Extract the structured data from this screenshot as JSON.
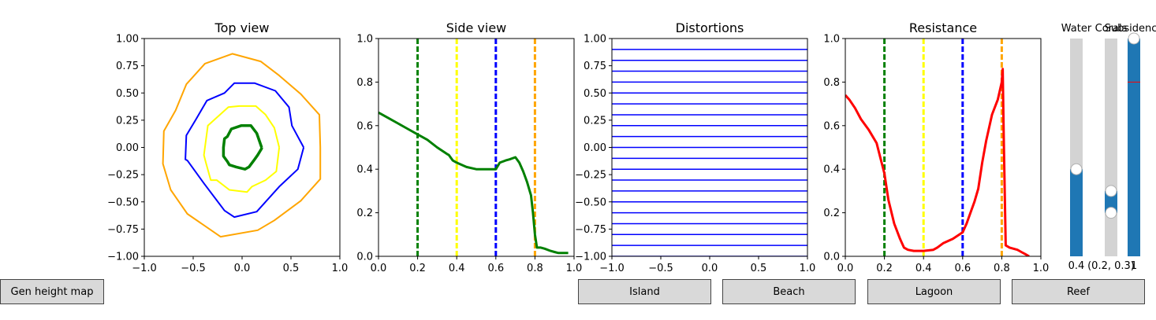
{
  "buttons": {
    "gen_height_map": "Gen height map",
    "island": "Island",
    "beach": "Beach",
    "lagoon": "Lagoon",
    "reef": "Reef"
  },
  "sliders": [
    {
      "title": "Water",
      "value_label": "0.4",
      "value": 0.4,
      "range": [
        0,
        1
      ]
    },
    {
      "title": "Corals",
      "value_label": "(0.2, 0.3)",
      "values": [
        0.2,
        0.3
      ],
      "range": [
        0,
        1
      ]
    },
    {
      "title": "Subsidence",
      "value_label": "1",
      "value": 1.0,
      "range": [
        0,
        1
      ],
      "initial_marker": 0.8
    }
  ],
  "colors": {
    "green": "#008000",
    "yellow": "#ffff00",
    "blue": "#0000ff",
    "orange": "#ffa500",
    "red": "#ff0000",
    "slider_fill": "#1f77b4",
    "slider_track": "#d3d3d3"
  },
  "chart_data": [
    {
      "type": "line",
      "title": "Top view",
      "xlim": [
        -1,
        1
      ],
      "ylim": [
        -1,
        1
      ],
      "xticks": [
        "−1.0",
        "−0.5",
        "0.0",
        "0.5",
        "1.0"
      ],
      "yticks": [
        "−1.00",
        "−0.75",
        "−0.50",
        "−0.25",
        "0.00",
        "0.25",
        "0.50",
        "0.75",
        "1.00"
      ],
      "series": [
        {
          "color": "orange",
          "width": 2,
          "x": [
            0.8,
            0.79,
            0.6,
            0.38,
            0.19,
            -0.1,
            -0.38,
            -0.57,
            -0.68,
            -0.8,
            -0.81,
            -0.73,
            -0.56,
            -0.22,
            0.16,
            0.33,
            0.6,
            0.8,
            0.8
          ],
          "y": [
            0.0,
            0.3,
            0.49,
            0.66,
            0.79,
            0.86,
            0.77,
            0.58,
            0.34,
            0.15,
            -0.15,
            -0.39,
            -0.61,
            -0.82,
            -0.76,
            -0.67,
            -0.49,
            -0.29,
            0.0
          ]
        },
        {
          "color": "blue",
          "width": 2,
          "x": [
            0.63,
            0.51,
            0.48,
            0.34,
            0.13,
            -0.08,
            -0.18,
            -0.36,
            -0.47,
            -0.57,
            -0.58,
            -0.56,
            -0.39,
            -0.18,
            -0.08,
            0.15,
            0.38,
            0.57,
            0.63
          ],
          "y": [
            0.0,
            0.2,
            0.37,
            0.52,
            0.59,
            0.59,
            0.5,
            0.43,
            0.26,
            0.11,
            -0.11,
            -0.12,
            -0.33,
            -0.58,
            -0.64,
            -0.59,
            -0.36,
            -0.2,
            0.0
          ]
        },
        {
          "color": "yellow",
          "width": 2,
          "x": [
            0.38,
            0.33,
            0.24,
            0.14,
            -0.03,
            -0.14,
            -0.35,
            -0.38,
            -0.39,
            -0.37,
            -0.32,
            -0.26,
            -0.13,
            0.05,
            0.1,
            0.24,
            0.35,
            0.38
          ],
          "y": [
            0.0,
            0.18,
            0.3,
            0.38,
            0.38,
            0.37,
            0.2,
            0.0,
            -0.07,
            -0.14,
            -0.3,
            -0.3,
            -0.39,
            -0.41,
            -0.36,
            -0.3,
            -0.22,
            0.0
          ]
        },
        {
          "color": "green",
          "width": 3.5,
          "x": [
            0.2,
            0.15,
            0.09,
            -0.01,
            -0.11,
            -0.15,
            -0.18,
            -0.19,
            -0.19,
            -0.15,
            -0.13,
            -0.06,
            0.03,
            0.07,
            0.12,
            0.16,
            0.2,
            0.2
          ],
          "y": [
            0.0,
            0.13,
            0.2,
            0.2,
            0.17,
            0.1,
            0.08,
            0.0,
            -0.08,
            -0.13,
            -0.16,
            -0.18,
            -0.2,
            -0.18,
            -0.12,
            -0.07,
            -0.01,
            0.0
          ]
        }
      ]
    },
    {
      "type": "line",
      "title": "Side view",
      "xlim": [
        0,
        1
      ],
      "ylim": [
        0,
        1
      ],
      "xticks": [
        "0.0",
        "0.2",
        "0.4",
        "0.6",
        "0.8",
        "1.0"
      ],
      "yticks": [
        "0.0",
        "0.2",
        "0.4",
        "0.6",
        "0.8",
        "1.0"
      ],
      "vlines": [
        {
          "x": 0.2,
          "color": "green"
        },
        {
          "x": 0.4,
          "color": "yellow"
        },
        {
          "x": 0.6,
          "color": "blue"
        },
        {
          "x": 0.8,
          "color": "orange"
        }
      ],
      "series": [
        {
          "color": "green",
          "width": 3,
          "x": [
            0.0,
            0.05,
            0.1,
            0.15,
            0.2,
            0.25,
            0.3,
            0.35,
            0.36,
            0.38,
            0.4,
            0.45,
            0.5,
            0.55,
            0.6,
            0.62,
            0.65,
            0.67,
            0.7,
            0.72,
            0.74,
            0.76,
            0.78,
            0.79,
            0.8,
            0.81,
            0.83,
            0.85,
            0.88,
            0.9,
            0.92,
            0.95,
            0.97
          ],
          "y": [
            0.66,
            0.635,
            0.61,
            0.585,
            0.56,
            0.535,
            0.5,
            0.47,
            0.465,
            0.44,
            0.43,
            0.41,
            0.4,
            0.4,
            0.4,
            0.43,
            0.44,
            0.445,
            0.455,
            0.43,
            0.39,
            0.34,
            0.28,
            0.2,
            0.1,
            0.04,
            0.04,
            0.035,
            0.025,
            0.02,
            0.015,
            0.015,
            0.015
          ]
        }
      ]
    },
    {
      "type": "line",
      "title": "Distortions",
      "xlim": [
        -1,
        1
      ],
      "ylim": [
        -1,
        1
      ],
      "xticks": [
        "−1.0",
        "−0.5",
        "0.0",
        "0.5",
        "1.0"
      ],
      "yticks": [
        "−1.00",
        "−0.75",
        "−0.50",
        "−0.25",
        "0.00",
        "0.25",
        "0.50",
        "0.75",
        "1.00"
      ],
      "hlines": {
        "color": "blue",
        "start": -0.9,
        "stop": 0.9,
        "step": 0.1,
        "extra": [
          -1.0
        ]
      }
    },
    {
      "type": "line",
      "title": "Resistance",
      "xlim": [
        0,
        1
      ],
      "ylim": [
        0,
        1
      ],
      "xticks": [
        "0.0",
        "0.2",
        "0.4",
        "0.6",
        "0.8",
        "1.0"
      ],
      "yticks": [
        "0.0",
        "0.2",
        "0.4",
        "0.6",
        "0.8",
        "1.0"
      ],
      "vlines": [
        {
          "x": 0.2,
          "color": "green"
        },
        {
          "x": 0.4,
          "color": "yellow"
        },
        {
          "x": 0.6,
          "color": "blue"
        },
        {
          "x": 0.8,
          "color": "orange"
        }
      ],
      "series": [
        {
          "color": "red",
          "width": 3,
          "x": [
            0.0,
            0.02,
            0.05,
            0.08,
            0.12,
            0.16,
            0.18,
            0.2,
            0.22,
            0.25,
            0.28,
            0.3,
            0.32,
            0.35,
            0.4,
            0.45,
            0.47,
            0.5,
            0.55,
            0.6,
            0.62,
            0.64,
            0.66,
            0.68,
            0.7,
            0.72,
            0.75,
            0.78,
            0.8,
            0.805,
            0.81,
            0.82,
            0.84,
            0.88,
            0.9,
            0.92,
            0.94
          ],
          "y": [
            0.74,
            0.72,
            0.68,
            0.63,
            0.58,
            0.52,
            0.45,
            0.38,
            0.26,
            0.15,
            0.08,
            0.04,
            0.03,
            0.025,
            0.025,
            0.03,
            0.04,
            0.06,
            0.08,
            0.11,
            0.15,
            0.2,
            0.25,
            0.31,
            0.43,
            0.53,
            0.65,
            0.72,
            0.8,
            0.86,
            0.55,
            0.05,
            0.04,
            0.03,
            0.02,
            0.01,
            0.0
          ]
        }
      ]
    }
  ]
}
